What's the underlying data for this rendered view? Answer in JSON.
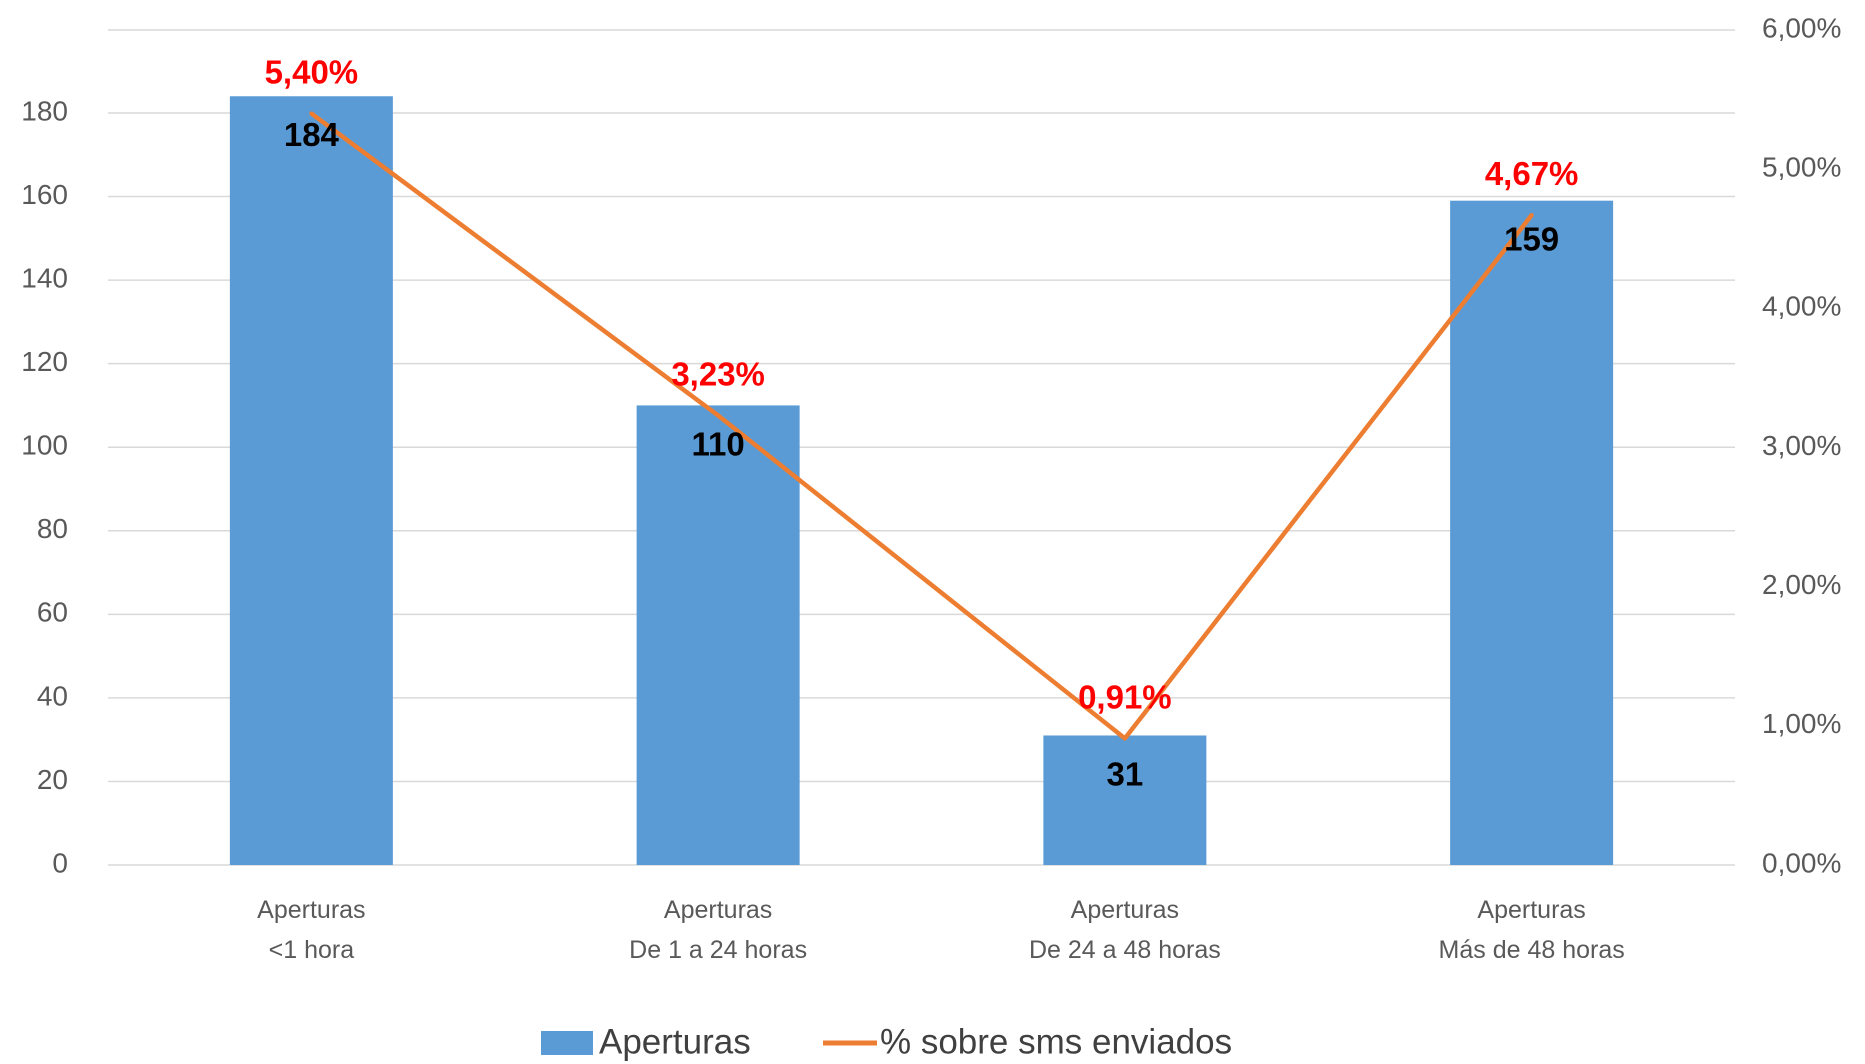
{
  "chart_data": {
    "type": "bar",
    "categories": [
      [
        "Aperturas",
        "<1 hora"
      ],
      [
        "Aperturas",
        "De 1 a 24 horas"
      ],
      [
        "Aperturas",
        "De 24 a 48 horas"
      ],
      [
        "Aperturas",
        "Más de 48 horas"
      ]
    ],
    "series": [
      {
        "name": "Aperturas",
        "type": "bar",
        "axis": "left",
        "values": [
          184,
          110,
          31,
          159
        ],
        "data_labels": [
          "184",
          "110",
          "31",
          "159"
        ],
        "color": "#5b9bd5"
      },
      {
        "name": "% sobre sms enviados",
        "type": "line",
        "axis": "right",
        "values": [
          5.4,
          3.23,
          0.91,
          4.67
        ],
        "data_labels": [
          "5,40%",
          "3,23%",
          "0,91%",
          "4,67%"
        ],
        "color": "#ed7d31"
      }
    ],
    "y_left": {
      "ylim": [
        0,
        200
      ],
      "ticks": [
        0,
        20,
        40,
        60,
        80,
        100,
        120,
        140,
        160,
        180
      ],
      "tick_labels": [
        "0",
        "20",
        "40",
        "60",
        "80",
        "100",
        "120",
        "140",
        "160",
        "180"
      ]
    },
    "y_right": {
      "ylim": [
        0,
        6
      ],
      "ticks": [
        0,
        1,
        2,
        3,
        4,
        5,
        6
      ],
      "tick_labels": [
        "0,00%",
        "1,00%",
        "2,00%",
        "3,00%",
        "4,00%",
        "5,00%",
        "6,00%"
      ]
    },
    "label_colors": {
      "bar": "#000000",
      "line": "#ff0000"
    },
    "gridlines": true,
    "legend_position": "bottom",
    "title": "",
    "xlabel": "",
    "ylabel": ""
  }
}
